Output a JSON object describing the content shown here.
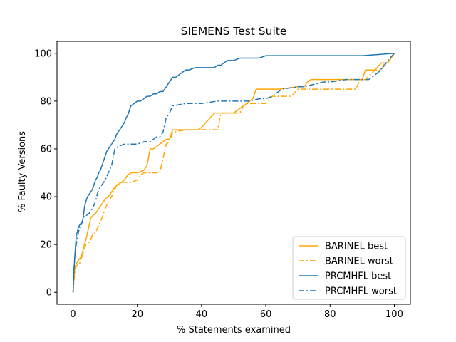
{
  "chart_data": {
    "type": "line",
    "title": "SIEMENS Test Suite",
    "xlabel": "% Statements examined",
    "ylabel": "% Faulty Versions",
    "xlim": [
      -5,
      105
    ],
    "ylim": [
      -5,
      105
    ],
    "xticks": [
      0,
      20,
      40,
      60,
      80,
      100
    ],
    "yticks": [
      0,
      20,
      40,
      60,
      80,
      100
    ],
    "grid": false,
    "legend_position": "bottom-right",
    "series": [
      {
        "name": "BARINEL best",
        "color": "#ffa500",
        "dash": "solid",
        "x": [
          0,
          0.3,
          0.5,
          1,
          1.5,
          2,
          2.5,
          3,
          3.5,
          4,
          4.5,
          5,
          5.5,
          6,
          7,
          8,
          9,
          10,
          11,
          12,
          13,
          15,
          16,
          17,
          18,
          19,
          20,
          22,
          23,
          24,
          25,
          26,
          27,
          28,
          29,
          30,
          31,
          35,
          39,
          40,
          42,
          44,
          46,
          50,
          51,
          52,
          53,
          54,
          55,
          56,
          57,
          60,
          64,
          70,
          72,
          73,
          74,
          76,
          80,
          85,
          88,
          90,
          91,
          93,
          94,
          96,
          98,
          100
        ],
        "y": [
          0,
          6,
          10,
          12,
          13,
          14,
          15,
          17,
          20,
          22,
          25,
          28,
          31,
          32,
          33,
          35,
          37,
          39,
          40,
          42,
          44,
          46,
          47,
          49,
          50,
          50,
          50,
          51,
          53,
          60,
          60,
          61,
          62,
          63,
          64,
          64,
          68,
          68,
          68,
          69,
          72,
          75,
          75,
          75,
          76,
          77,
          78,
          79,
          80,
          81,
          85,
          85,
          85,
          86,
          86,
          88,
          89,
          89,
          89,
          89,
          89,
          89,
          93,
          93,
          93,
          96,
          96,
          100
        ]
      },
      {
        "name": "BARINEL worst",
        "color": "#ffa500",
        "dash": "dashdot",
        "x": [
          0,
          0.3,
          0.6,
          1,
          2,
          2.5,
          3,
          3.5,
          4,
          5,
          5.5,
          6,
          7,
          8,
          9,
          10,
          11,
          12,
          13,
          14,
          16,
          18,
          20,
          21,
          22,
          24,
          26,
          27,
          28,
          29,
          30,
          31,
          35,
          40,
          44,
          45,
          46,
          50,
          52,
          53,
          54,
          57,
          60,
          62,
          68,
          70,
          72,
          75,
          80,
          85,
          88,
          89,
          90,
          91,
          94,
          96,
          97,
          98,
          100
        ],
        "y": [
          0,
          5,
          9,
          11,
          12,
          14,
          16,
          18,
          20,
          21,
          22,
          24,
          25,
          28,
          31,
          35,
          38,
          40,
          43,
          46,
          46,
          46,
          47,
          49,
          50,
          50,
          50,
          50,
          56,
          62,
          63,
          67,
          68,
          68,
          68,
          68,
          75,
          75,
          75,
          78,
          79,
          79,
          79,
          82,
          82,
          85,
          85,
          85,
          85,
          85,
          85,
          88,
          89,
          89,
          93,
          93,
          96,
          96,
          100
        ]
      },
      {
        "name": "PRCMHFL best",
        "color": "#1f77b4",
        "dash": "solid",
        "x": [
          0,
          0.2,
          0.5,
          0.8,
          1,
          1.3,
          1.6,
          2,
          2.5,
          3,
          3.3,
          3.6,
          4,
          4.5,
          5,
          5.5,
          6,
          6.5,
          7,
          7.5,
          8,
          8.5,
          9,
          9.5,
          10,
          10.5,
          11,
          11.5,
          12,
          12.5,
          13,
          13.5,
          14,
          14.5,
          15,
          15.5,
          16,
          16.5,
          17,
          17.5,
          18,
          19,
          20,
          21,
          22,
          23,
          24,
          25,
          26,
          27,
          28,
          29,
          30,
          31,
          32,
          33,
          34,
          35,
          36,
          38,
          40,
          42,
          44,
          45,
          46,
          47,
          48,
          50,
          52,
          54,
          56,
          58,
          60,
          65,
          70,
          75,
          80,
          85,
          90,
          95,
          100
        ],
        "y": [
          0,
          8,
          14,
          20,
          24,
          25,
          27,
          28,
          29,
          30,
          33,
          36,
          38,
          40,
          41,
          42,
          43,
          45,
          47,
          48,
          50,
          51,
          53,
          55,
          57,
          59,
          60,
          61,
          62,
          63,
          64,
          66,
          67,
          68,
          69,
          70,
          71,
          73,
          74,
          76,
          78,
          79,
          80,
          80,
          81,
          82,
          82,
          83,
          83,
          84,
          84,
          86,
          88,
          90,
          90,
          91,
          92,
          93,
          93,
          94,
          94,
          94,
          94,
          95,
          95,
          96,
          97,
          97,
          98,
          98,
          98,
          98,
          99,
          99,
          99,
          99,
          99,
          99,
          99,
          99.5,
          100
        ]
      },
      {
        "name": "PRCMHFL worst",
        "color": "#1f77b4",
        "dash": "dashdot",
        "x": [
          0,
          0.3,
          0.6,
          1,
          1.5,
          2,
          2.5,
          3,
          3.5,
          4,
          5,
          6,
          7,
          7.5,
          8,
          9,
          10,
          11,
          12,
          13,
          14,
          16,
          18,
          20,
          22,
          24,
          25,
          26,
          27,
          28,
          29,
          30,
          31,
          35,
          40,
          45,
          50,
          55,
          58,
          60,
          62,
          65,
          70,
          72,
          75,
          78,
          80,
          85,
          90,
          92,
          93,
          95,
          97,
          98,
          100
        ],
        "y": [
          0,
          10,
          16,
          20,
          24,
          27,
          28,
          30,
          32,
          32,
          33,
          35,
          38,
          41,
          43,
          45,
          47,
          50,
          53,
          60,
          61,
          62,
          62,
          62,
          63,
          63,
          64,
          65,
          65,
          67,
          73,
          75,
          78,
          79,
          79,
          80,
          80,
          80,
          81,
          81,
          82,
          85,
          86,
          86,
          87,
          88,
          88,
          89,
          89,
          89,
          90,
          92,
          95,
          97,
          100
        ]
      }
    ]
  }
}
